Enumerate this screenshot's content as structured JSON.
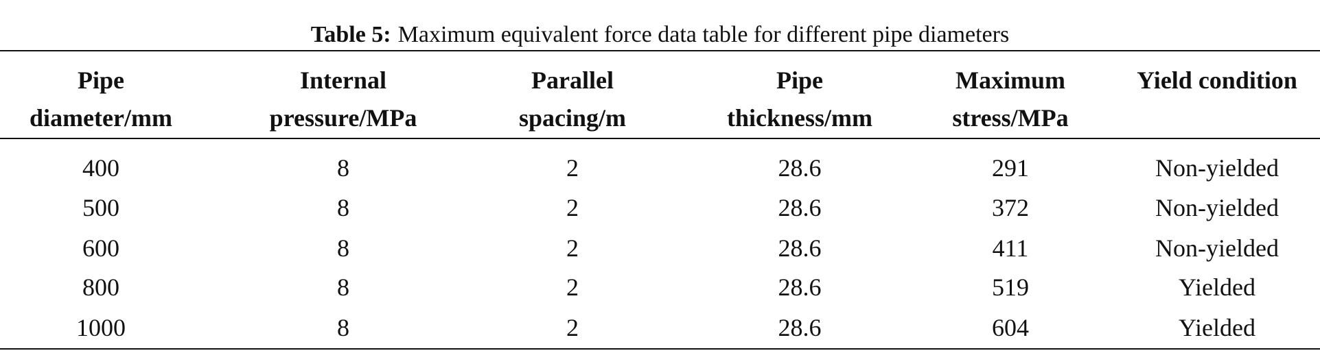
{
  "caption": {
    "label": "Table 5:",
    "text": "Maximum equivalent force data table for different pipe diameters"
  },
  "table": {
    "header": [
      [
        "Pipe",
        "diameter/mm"
      ],
      [
        "Internal",
        "pressure/MPa"
      ],
      [
        "Parallel",
        "spacing/m"
      ],
      [
        "Pipe",
        "thickness/mm"
      ],
      [
        "Maximum",
        "stress/MPa"
      ],
      [
        "Yield condition"
      ]
    ],
    "rows": [
      [
        400,
        8,
        2,
        28.6,
        291,
        "Non-yielded"
      ],
      [
        500,
        8,
        2,
        28.6,
        372,
        "Non-yielded"
      ],
      [
        600,
        8,
        2,
        28.6,
        411,
        "Non-yielded"
      ],
      [
        800,
        8,
        2,
        28.6,
        519,
        "Yielded"
      ],
      [
        1000,
        8,
        2,
        28.6,
        604,
        "Yielded"
      ]
    ]
  }
}
